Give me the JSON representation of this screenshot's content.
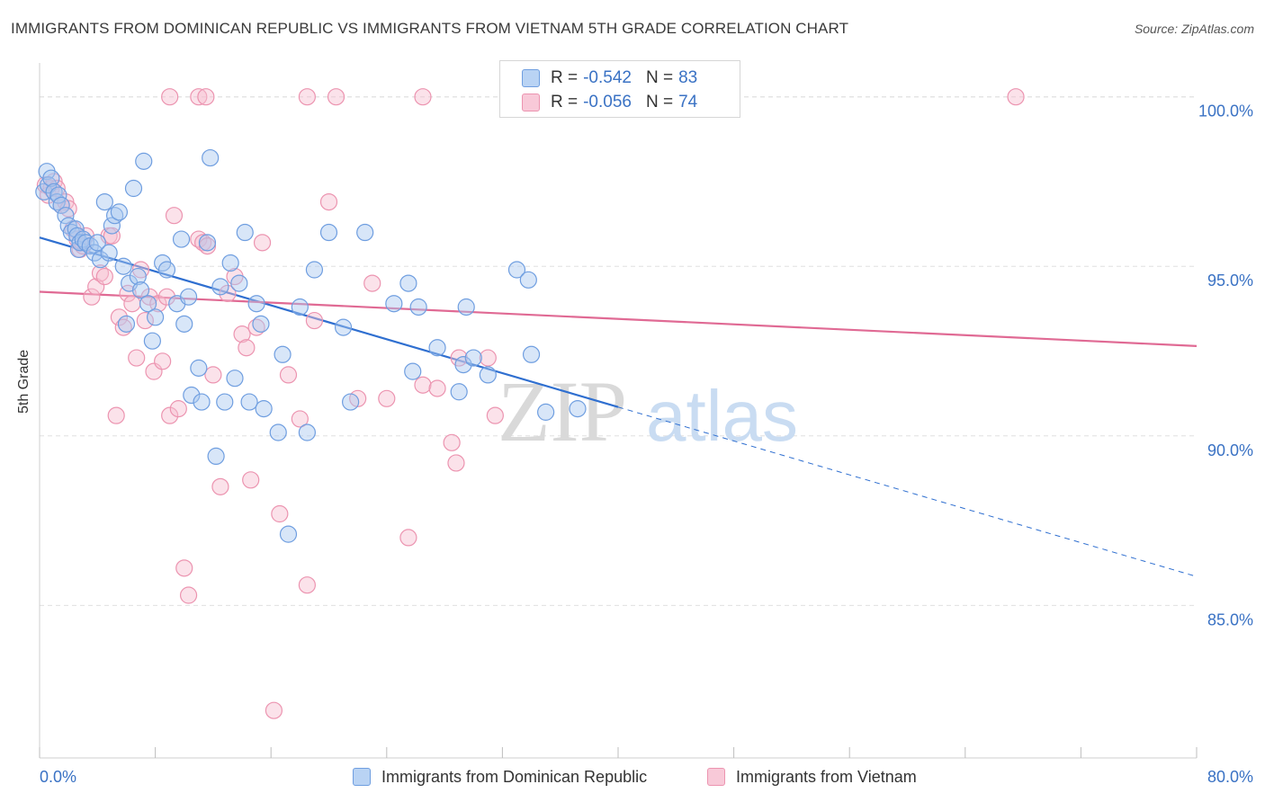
{
  "header": {
    "title": "IMMIGRANTS FROM DOMINICAN REPUBLIC VS IMMIGRANTS FROM VIETNAM 5TH GRADE CORRELATION CHART",
    "source": "Source: ZipAtlas.com"
  },
  "watermark": {
    "part1": "ZIP",
    "part2": "atlas"
  },
  "legend": {
    "rows": [
      {
        "r_label": "R =",
        "r_value": "-0.542",
        "n_label": "N =",
        "n_value": "83"
      },
      {
        "r_label": "R =",
        "r_value": "-0.056",
        "n_label": "N =",
        "n_value": "74"
      }
    ]
  },
  "bottom_legend": {
    "series1": "Immigrants from Dominican Republic",
    "series2": "Immigrants from Vietnam"
  },
  "colors": {
    "blue_fill": "#a8c8f0",
    "blue_stroke": "#6f9ee0",
    "blue_line": "#2f6fd0",
    "pink_fill": "#f6bfd0",
    "pink_stroke": "#ec94b0",
    "pink_line": "#e06a94",
    "grid": "#e0e0e0",
    "tick_label": "#3a72c4"
  },
  "chart_data": {
    "type": "scatter",
    "title": "IMMIGRANTS FROM DOMINICAN REPUBLIC VS IMMIGRANTS FROM VIETNAM 5TH GRADE CORRELATION CHART",
    "xlabel": "",
    "ylabel": "5th Grade",
    "xlim": [
      0,
      80
    ],
    "ylim": [
      80.5,
      101
    ],
    "x_tick_labels": [
      "0.0%",
      "80.0%"
    ],
    "y_ticks": [
      85,
      90,
      95,
      100
    ],
    "y_tick_labels": [
      "85.0%",
      "90.0%",
      "95.0%",
      "100.0%"
    ],
    "grid": true,
    "legend_position": "top-center",
    "series": [
      {
        "name": "Immigrants from Dominican Republic",
        "r": -0.542,
        "n": 83,
        "trend": {
          "x0": 0,
          "y0": 95.85,
          "x1": 40,
          "y1": 90.85,
          "dashed_to_x": 80,
          "dashed_to_y": 85.85
        },
        "points": [
          [
            0.3,
            97.2
          ],
          [
            0.5,
            97.8
          ],
          [
            0.6,
            97.4
          ],
          [
            0.8,
            97.6
          ],
          [
            1.0,
            97.2
          ],
          [
            1.2,
            96.9
          ],
          [
            1.3,
            97.1
          ],
          [
            1.5,
            96.8
          ],
          [
            1.8,
            96.5
          ],
          [
            2.0,
            96.2
          ],
          [
            2.2,
            96.0
          ],
          [
            2.5,
            96.1
          ],
          [
            2.6,
            95.9
          ],
          [
            2.7,
            95.5
          ],
          [
            2.8,
            95.7
          ],
          [
            3.0,
            95.8
          ],
          [
            3.2,
            95.7
          ],
          [
            3.5,
            95.6
          ],
          [
            3.8,
            95.4
          ],
          [
            4.0,
            95.7
          ],
          [
            4.2,
            95.2
          ],
          [
            4.5,
            96.9
          ],
          [
            4.8,
            95.4
          ],
          [
            5.0,
            96.2
          ],
          [
            5.2,
            96.5
          ],
          [
            5.5,
            96.6
          ],
          [
            5.8,
            95.0
          ],
          [
            6.0,
            93.3
          ],
          [
            6.2,
            94.5
          ],
          [
            6.5,
            97.3
          ],
          [
            6.8,
            94.7
          ],
          [
            7.0,
            94.3
          ],
          [
            7.2,
            98.1
          ],
          [
            7.5,
            93.9
          ],
          [
            7.8,
            92.8
          ],
          [
            8.0,
            93.5
          ],
          [
            8.5,
            95.1
          ],
          [
            8.8,
            94.9
          ],
          [
            9.5,
            93.9
          ],
          [
            9.8,
            95.8
          ],
          [
            10.0,
            93.3
          ],
          [
            10.3,
            94.1
          ],
          [
            10.5,
            91.2
          ],
          [
            11.0,
            92.0
          ],
          [
            11.2,
            91.0
          ],
          [
            11.6,
            95.7
          ],
          [
            11.8,
            98.2
          ],
          [
            12.2,
            89.4
          ],
          [
            12.5,
            94.4
          ],
          [
            12.8,
            91.0
          ],
          [
            13.2,
            95.1
          ],
          [
            13.5,
            91.7
          ],
          [
            13.8,
            94.5
          ],
          [
            14.2,
            96.0
          ],
          [
            14.5,
            91.0
          ],
          [
            15.0,
            93.9
          ],
          [
            15.3,
            93.3
          ],
          [
            15.5,
            90.8
          ],
          [
            16.5,
            90.1
          ],
          [
            16.8,
            92.4
          ],
          [
            17.2,
            87.1
          ],
          [
            18.0,
            93.8
          ],
          [
            18.5,
            90.1
          ],
          [
            19.0,
            94.9
          ],
          [
            20.0,
            96.0
          ],
          [
            21.0,
            93.2
          ],
          [
            21.5,
            91.0
          ],
          [
            22.5,
            96.0
          ],
          [
            24.5,
            93.9
          ],
          [
            25.5,
            94.5
          ],
          [
            25.8,
            91.9
          ],
          [
            26.2,
            93.8
          ],
          [
            27.5,
            92.6
          ],
          [
            29.0,
            91.3
          ],
          [
            29.3,
            92.1
          ],
          [
            29.5,
            93.8
          ],
          [
            30.0,
            92.3
          ],
          [
            31.0,
            91.8
          ],
          [
            33.0,
            94.9
          ],
          [
            33.8,
            94.6
          ],
          [
            34.0,
            92.4
          ],
          [
            35.0,
            90.7
          ],
          [
            37.2,
            90.8
          ]
        ]
      },
      {
        "name": "Immigrants from Vietnam",
        "r": -0.056,
        "n": 74,
        "trend": {
          "x0": 0,
          "y0": 94.25,
          "x1": 80,
          "y1": 92.65
        },
        "points": [
          [
            0.4,
            97.4
          ],
          [
            0.6,
            97.1
          ],
          [
            0.8,
            97.3
          ],
          [
            1.0,
            97.5
          ],
          [
            1.2,
            97.3
          ],
          [
            1.5,
            96.8
          ],
          [
            1.8,
            96.9
          ],
          [
            2.0,
            96.7
          ],
          [
            2.3,
            96.1
          ],
          [
            2.6,
            95.8
          ],
          [
            2.8,
            95.5
          ],
          [
            3.0,
            95.6
          ],
          [
            3.2,
            95.9
          ],
          [
            3.6,
            94.1
          ],
          [
            3.9,
            94.4
          ],
          [
            4.2,
            94.8
          ],
          [
            4.5,
            94.7
          ],
          [
            4.8,
            95.9
          ],
          [
            5.0,
            95.9
          ],
          [
            5.3,
            90.6
          ],
          [
            5.5,
            93.5
          ],
          [
            5.8,
            93.2
          ],
          [
            6.1,
            94.2
          ],
          [
            6.4,
            93.9
          ],
          [
            6.7,
            92.3
          ],
          [
            7.0,
            94.9
          ],
          [
            7.3,
            93.4
          ],
          [
            7.6,
            94.1
          ],
          [
            7.9,
            91.9
          ],
          [
            8.2,
            93.9
          ],
          [
            8.5,
            92.2
          ],
          [
            8.8,
            94.1
          ],
          [
            9.0,
            90.6
          ],
          [
            9.3,
            96.5
          ],
          [
            9.6,
            90.8
          ],
          [
            10.0,
            86.1
          ],
          [
            10.3,
            85.3
          ],
          [
            11.0,
            95.8
          ],
          [
            11.3,
            95.7
          ],
          [
            11.6,
            95.6
          ],
          [
            12.0,
            91.8
          ],
          [
            12.5,
            88.5
          ],
          [
            13.0,
            94.2
          ],
          [
            13.5,
            94.7
          ],
          [
            14.0,
            93.0
          ],
          [
            14.3,
            92.6
          ],
          [
            14.6,
            88.7
          ],
          [
            15.0,
            93.2
          ],
          [
            15.4,
            95.7
          ],
          [
            16.2,
            81.9
          ],
          [
            16.6,
            87.7
          ],
          [
            17.2,
            91.8
          ],
          [
            18.0,
            90.5
          ],
          [
            18.5,
            85.6
          ],
          [
            19.0,
            93.4
          ],
          [
            20.0,
            96.9
          ],
          [
            22.0,
            91.1
          ],
          [
            23.0,
            94.5
          ],
          [
            24.0,
            91.1
          ],
          [
            25.5,
            87.0
          ],
          [
            26.5,
            91.5
          ],
          [
            27.5,
            91.4
          ],
          [
            28.5,
            89.8
          ],
          [
            28.8,
            89.2
          ],
          [
            29.0,
            92.3
          ],
          [
            31.0,
            92.3
          ],
          [
            31.5,
            90.6
          ],
          [
            9.0,
            100.0
          ],
          [
            11.0,
            100.0
          ],
          [
            11.5,
            100.0
          ],
          [
            18.5,
            100.0
          ],
          [
            20.5,
            100.0
          ],
          [
            26.5,
            100.0
          ],
          [
            67.5,
            100.0
          ]
        ]
      }
    ]
  }
}
